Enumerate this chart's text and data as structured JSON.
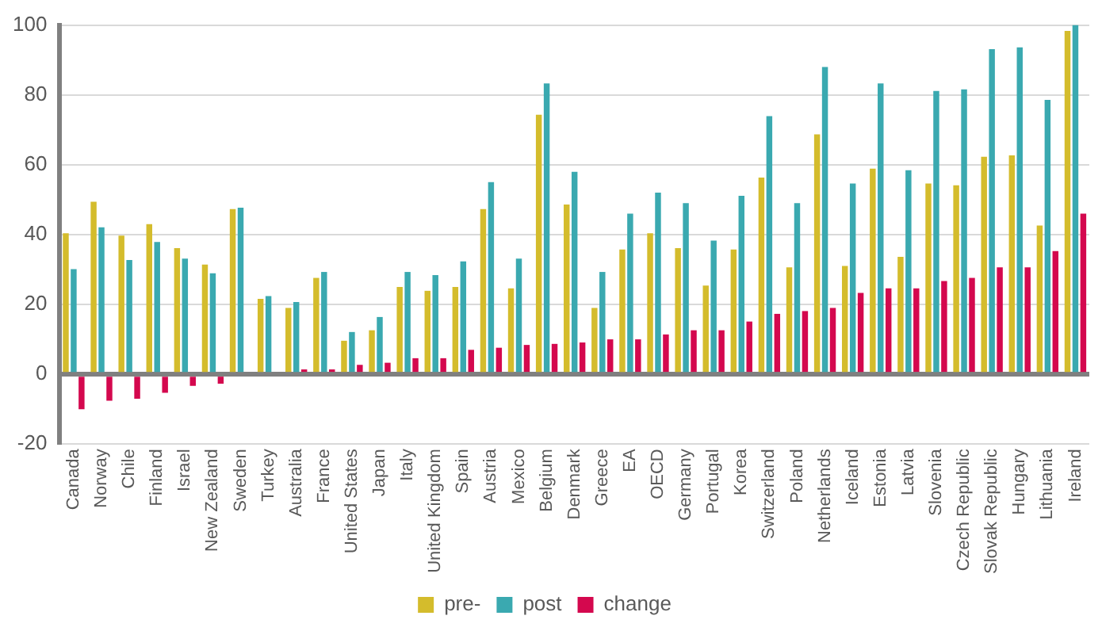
{
  "chart_data": {
    "type": "bar",
    "categories": [
      "Canada",
      "Norway",
      "Chile",
      "Finland",
      "Israel",
      "New Zealand",
      "Sweden",
      "Turkey",
      "Australia",
      "France",
      "United States",
      "Japan",
      "Italy",
      "United Kingdom",
      "Spain",
      "Austria",
      "Mexico",
      "Belgium",
      "Denmark",
      "Greece",
      "EA",
      "OECD",
      "Germany",
      "Portugal",
      "Korea",
      "Switzerland",
      "Poland",
      "Netherlands",
      "Iceland",
      "Estonia",
      "Latvia",
      "Slovenia",
      "Czech Republic",
      "Slovak Republic",
      "Hungary",
      "Lithuania",
      "Ireland"
    ],
    "series": [
      {
        "name": "pre-",
        "color": "#d4bc2c",
        "values": [
          40.4,
          49.4,
          39.7,
          43,
          36.1,
          31.4,
          47.3,
          21.6,
          19,
          27.6,
          9.6,
          12.6,
          25,
          23.9,
          25,
          47.3,
          24.6,
          74.3,
          48.6,
          19,
          35.7,
          40.4,
          36.1,
          25.4,
          35.7,
          56.3,
          30.6,
          68.7,
          31,
          58.9,
          33.6,
          54.6,
          54.1,
          62.3,
          62.7,
          42.6,
          98.3
        ]
      },
      {
        "name": "post",
        "color": "#3aa9b0",
        "values": [
          30.1,
          42.1,
          32.7,
          37.9,
          33.1,
          28.9,
          47.7,
          22.4,
          20.7,
          29.3,
          12.1,
          16.4,
          29.3,
          28.4,
          32.3,
          55,
          33.1,
          83.3,
          58,
          29.3,
          46,
          52,
          49,
          38.3,
          51.1,
          73.9,
          49,
          88,
          54.6,
          83.3,
          58.4,
          81.1,
          81.6,
          93.1,
          93.6,
          78.6,
          100
        ]
      },
      {
        "name": "change",
        "color": "#d4084e",
        "values": [
          -10,
          -7.6,
          -7,
          -5.3,
          -3.3,
          -2.7,
          null,
          null,
          1.4,
          1.4,
          2.7,
          3.3,
          4.6,
          4.6,
          7,
          7.6,
          8.4,
          8.7,
          9.1,
          10,
          10,
          11.4,
          12.6,
          12.6,
          15.1,
          17.3,
          18.1,
          19,
          23.3,
          24.6,
          24.6,
          26.7,
          27.6,
          30.6,
          30.6,
          35.3,
          46
        ]
      }
    ],
    "ylim": [
      -20,
      100
    ],
    "yticks": [
      -20,
      0,
      20,
      40,
      60,
      80,
      100
    ],
    "grid": "y",
    "legend": "bottom"
  }
}
